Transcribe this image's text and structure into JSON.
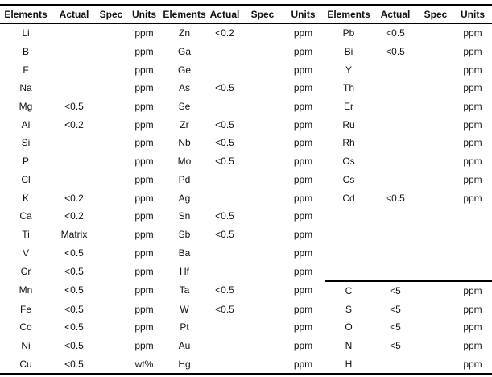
{
  "colors": {
    "background": "#ffffff",
    "text": "#111111",
    "rule": "#000000"
  },
  "table": {
    "column_headers": [
      "Elements",
      "Actual",
      "Spec",
      "Units"
    ],
    "groups": [
      {
        "rows": [
          {
            "element": "Li",
            "actual": "",
            "spec": "",
            "units": "ppm"
          },
          {
            "element": "B",
            "actual": "",
            "spec": "",
            "units": "ppm"
          },
          {
            "element": "F",
            "actual": "",
            "spec": "",
            "units": "ppm"
          },
          {
            "element": "Na",
            "actual": "",
            "spec": "",
            "units": "ppm"
          },
          {
            "element": "Mg",
            "actual": "<0.5",
            "spec": "",
            "units": "ppm"
          },
          {
            "element": "Al",
            "actual": "<0.2",
            "spec": "",
            "units": "ppm"
          },
          {
            "element": "Si",
            "actual": "",
            "spec": "",
            "units": "ppm"
          },
          {
            "element": "P",
            "actual": "",
            "spec": "",
            "units": "ppm"
          },
          {
            "element": "Cl",
            "actual": "",
            "spec": "",
            "units": "ppm"
          },
          {
            "element": "K",
            "actual": "<0.2",
            "spec": "",
            "units": "ppm"
          },
          {
            "element": "Ca",
            "actual": "<0.2",
            "spec": "",
            "units": "ppm"
          },
          {
            "element": "Ti",
            "actual": "Matrix",
            "spec": "",
            "units": "ppm"
          },
          {
            "element": "V",
            "actual": "<0.5",
            "spec": "",
            "units": "ppm"
          },
          {
            "element": "Cr",
            "actual": "<0.5",
            "spec": "",
            "units": "ppm"
          },
          {
            "element": "Mn",
            "actual": "<0.5",
            "spec": "",
            "units": "ppm"
          },
          {
            "element": "Fe",
            "actual": "<0.5",
            "spec": "",
            "units": "ppm"
          },
          {
            "element": "Co",
            "actual": "<0.5",
            "spec": "",
            "units": "ppm"
          },
          {
            "element": "Ni",
            "actual": "<0.5",
            "spec": "",
            "units": "ppm"
          },
          {
            "element": "Cu",
            "actual": "<0.5",
            "spec": "",
            "units": "wt%"
          }
        ]
      },
      {
        "rows": [
          {
            "element": "Zn",
            "actual": "<0.2",
            "spec": "",
            "units": "ppm"
          },
          {
            "element": "Ga",
            "actual": "",
            "spec": "",
            "units": "ppm"
          },
          {
            "element": "Ge",
            "actual": "",
            "spec": "",
            "units": "ppm"
          },
          {
            "element": "As",
            "actual": "<0.5",
            "spec": "",
            "units": "ppm"
          },
          {
            "element": "Se",
            "actual": "",
            "spec": "",
            "units": "ppm"
          },
          {
            "element": "Zr",
            "actual": "<0.5",
            "spec": "",
            "units": "ppm"
          },
          {
            "element": "Nb",
            "actual": "<0.5",
            "spec": "",
            "units": "ppm"
          },
          {
            "element": "Mo",
            "actual": "<0.5",
            "spec": "",
            "units": "ppm"
          },
          {
            "element": "Pd",
            "actual": "",
            "spec": "",
            "units": "ppm"
          },
          {
            "element": "Ag",
            "actual": "",
            "spec": "",
            "units": "ppm"
          },
          {
            "element": "Sn",
            "actual": "<0.5",
            "spec": "",
            "units": "ppm"
          },
          {
            "element": "Sb",
            "actual": "<0.5",
            "spec": "",
            "units": "ppm"
          },
          {
            "element": "Ba",
            "actual": "",
            "spec": "",
            "units": "ppm"
          },
          {
            "element": "Hf",
            "actual": "",
            "spec": "",
            "units": "ppm"
          },
          {
            "element": "Ta",
            "actual": "<0.5",
            "spec": "",
            "units": "ppm"
          },
          {
            "element": "W",
            "actual": "<0.5",
            "spec": "",
            "units": "ppm"
          },
          {
            "element": "Pt",
            "actual": "",
            "spec": "",
            "units": "ppm"
          },
          {
            "element": "Au",
            "actual": "",
            "spec": "",
            "units": "ppm"
          },
          {
            "element": "Hg",
            "actual": "",
            "spec": "",
            "units": "ppm"
          }
        ]
      },
      {
        "rows": [
          {
            "element": "Pb",
            "actual": "<0.5",
            "spec": "",
            "units": "ppm"
          },
          {
            "element": "Bi",
            "actual": "<0.5",
            "spec": "",
            "units": "ppm"
          },
          {
            "element": "Y",
            "actual": "",
            "spec": "",
            "units": "ppm"
          },
          {
            "element": "Th",
            "actual": "",
            "spec": "",
            "units": "ppm"
          },
          {
            "element": "Er",
            "actual": "",
            "spec": "",
            "units": "ppm"
          },
          {
            "element": "Ru",
            "actual": "",
            "spec": "",
            "units": "ppm"
          },
          {
            "element": "Rh",
            "actual": "",
            "spec": "",
            "units": "ppm"
          },
          {
            "element": "Os",
            "actual": "",
            "spec": "",
            "units": "ppm"
          },
          {
            "element": "Cs",
            "actual": "",
            "spec": "",
            "units": "ppm"
          },
          {
            "element": "Cd",
            "actual": "<0.5",
            "spec": "",
            "units": "ppm"
          },
          {
            "element": "",
            "actual": "",
            "spec": "",
            "units": ""
          },
          {
            "element": "",
            "actual": "",
            "spec": "",
            "units": ""
          },
          {
            "element": "",
            "actual": "",
            "spec": "",
            "units": ""
          },
          {
            "element": "",
            "actual": "",
            "spec": "",
            "units": ""
          },
          {
            "element": "C",
            "actual": "<5",
            "spec": "",
            "units": "ppm",
            "separator_above": true
          },
          {
            "element": "S",
            "actual": "<5",
            "spec": "",
            "units": "ppm"
          },
          {
            "element": "O",
            "actual": "<5",
            "spec": "",
            "units": "ppm"
          },
          {
            "element": "N",
            "actual": "<5",
            "spec": "",
            "units": "ppm"
          },
          {
            "element": "H",
            "actual": "",
            "spec": "",
            "units": "ppm"
          }
        ]
      }
    ]
  }
}
